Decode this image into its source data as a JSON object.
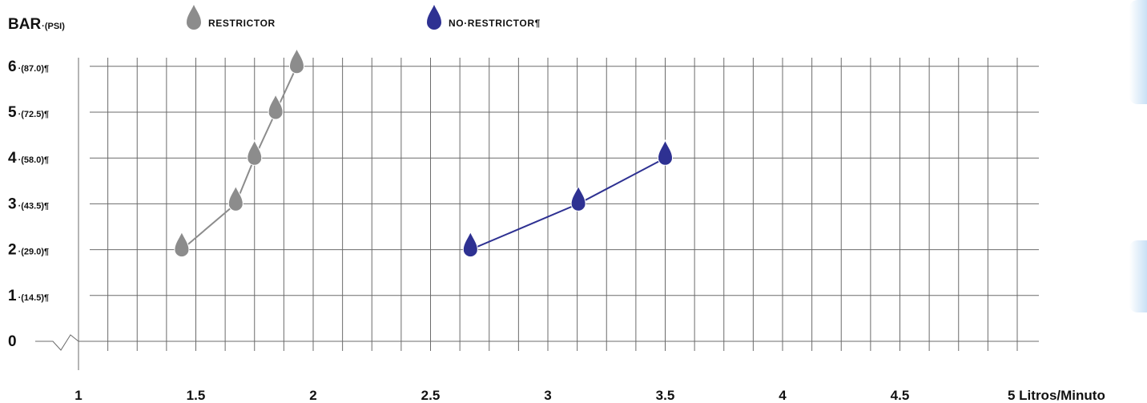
{
  "chart_data": {
    "type": "line",
    "title": "",
    "ylabel": "BAR",
    "ylabel_unit": "·(PSI)",
    "xlabel": "Litros/Minuto",
    "x_ticks": [
      {
        "value": 1,
        "label": "1"
      },
      {
        "value": 1.5,
        "label": "1.5"
      },
      {
        "value": 2,
        "label": "2"
      },
      {
        "value": 2.5,
        "label": "2.5"
      },
      {
        "value": 3,
        "label": "3"
      },
      {
        "value": 3.5,
        "label": "3.5"
      },
      {
        "value": 4,
        "label": "4"
      },
      {
        "value": 4.5,
        "label": "4.5"
      },
      {
        "value": 5,
        "label": "5 Litros/Minuto"
      }
    ],
    "y_ticks": [
      {
        "value": 0,
        "label": "0",
        "psi": ""
      },
      {
        "value": 1,
        "label": "1",
        "psi": "·(14.5)¶"
      },
      {
        "value": 2,
        "label": "2",
        "psi": "·(29.0)¶"
      },
      {
        "value": 3,
        "label": "3",
        "psi": "·(43.5)¶"
      },
      {
        "value": 4,
        "label": "4",
        "psi": "·(58.0)¶"
      },
      {
        "value": 5,
        "label": "5",
        "psi": "·(72.5)¶"
      },
      {
        "value": 6,
        "label": "6",
        "psi": "·(87.0)¶"
      }
    ],
    "xlim": [
      1,
      5
    ],
    "ylim": [
      0,
      6
    ],
    "grid": true,
    "legend_position": "top",
    "series": [
      {
        "name": "RESTRICTOR",
        "color": "#8c8c8c",
        "marker": "drop",
        "points": [
          {
            "x": 1.44,
            "y": 2.0
          },
          {
            "x": 1.67,
            "y": 3.0
          },
          {
            "x": 1.75,
            "y": 4.0
          },
          {
            "x": 1.84,
            "y": 5.0
          },
          {
            "x": 1.93,
            "y": 6.0
          }
        ]
      },
      {
        "name": "NO·RESTRICTOR¶",
        "color": "#2e3192",
        "marker": "drop",
        "points": [
          {
            "x": 2.67,
            "y": 2.0
          },
          {
            "x": 3.13,
            "y": 3.0
          },
          {
            "x": 3.5,
            "y": 4.0
          }
        ]
      }
    ]
  }
}
